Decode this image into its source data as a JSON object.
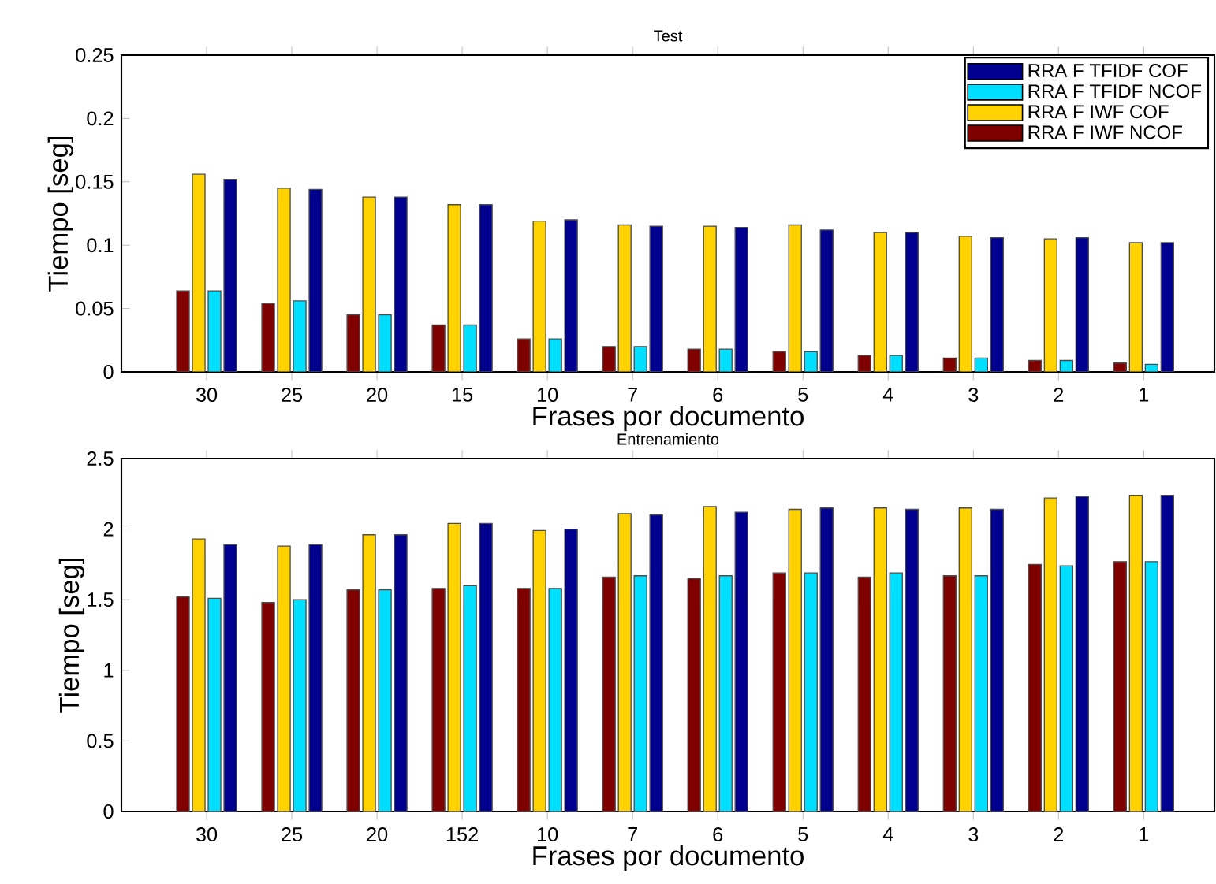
{
  "chart_data": [
    {
      "type": "bar",
      "title": "Test",
      "xlabel": "Frases por documento",
      "ylabel": "Tiempo [seg]",
      "categories": [
        "30",
        "25",
        "20",
        "15",
        "10",
        "7",
        "6",
        "5",
        "4",
        "3",
        "2",
        "1"
      ],
      "ylim": [
        0,
        0.25
      ],
      "yticks": [
        0,
        0.05,
        0.1,
        0.15,
        0.2,
        0.25
      ],
      "legend": "top right",
      "grid": false,
      "series": [
        {
          "name": "RRA F IWF NCOF",
          "color": "#800000",
          "values": [
            0.064,
            0.054,
            0.045,
            0.037,
            0.026,
            0.02,
            0.018,
            0.016,
            0.013,
            0.011,
            0.009,
            0.007
          ]
        },
        {
          "name": "RRA F IWF COF",
          "color": "#ffd200",
          "values": [
            0.156,
            0.145,
            0.138,
            0.132,
            0.119,
            0.116,
            0.115,
            0.116,
            0.11,
            0.107,
            0.105,
            0.102
          ]
        },
        {
          "name": "RRA F TFIDF NCOF",
          "color": "#00dfff",
          "values": [
            0.064,
            0.056,
            0.045,
            0.037,
            0.026,
            0.02,
            0.018,
            0.016,
            0.013,
            0.011,
            0.009,
            0.006
          ]
        },
        {
          "name": "RRA F TFIDF COF",
          "color": "#00008f",
          "values": [
            0.152,
            0.144,
            0.138,
            0.132,
            0.12,
            0.115,
            0.114,
            0.112,
            0.11,
            0.106,
            0.106,
            0.102
          ]
        }
      ]
    },
    {
      "type": "bar",
      "title": "Entrenamiento",
      "xlabel": "Frases por documento",
      "ylabel": "Tiempo [seg]",
      "categories": [
        "30",
        "25",
        "20",
        "152",
        "10",
        "7",
        "6",
        "5",
        "4",
        "3",
        "2",
        "1"
      ],
      "ylim": [
        0,
        2.5
      ],
      "yticks": [
        0,
        0.5,
        1,
        1.5,
        2,
        2.5
      ],
      "grid": false,
      "series": [
        {
          "color": "#800000",
          "values": [
            1.52,
            1.48,
            1.57,
            1.58,
            1.58,
            1.66,
            1.65,
            1.69,
            1.66,
            1.67,
            1.75,
            1.77
          ]
        },
        {
          "color": "#ffd200",
          "values": [
            1.93,
            1.88,
            1.96,
            2.04,
            1.99,
            2.11,
            2.16,
            2.14,
            2.15,
            2.15,
            2.22,
            2.24
          ]
        },
        {
          "color": "#00dfff",
          "values": [
            1.51,
            1.5,
            1.57,
            1.6,
            1.58,
            1.67,
            1.67,
            1.69,
            1.69,
            1.67,
            1.74,
            1.77
          ]
        },
        {
          "color": "#00008f",
          "values": [
            1.89,
            1.89,
            1.96,
            2.04,
            2.0,
            2.1,
            2.12,
            2.15,
            2.14,
            2.14,
            2.23,
            2.24
          ]
        }
      ]
    }
  ]
}
